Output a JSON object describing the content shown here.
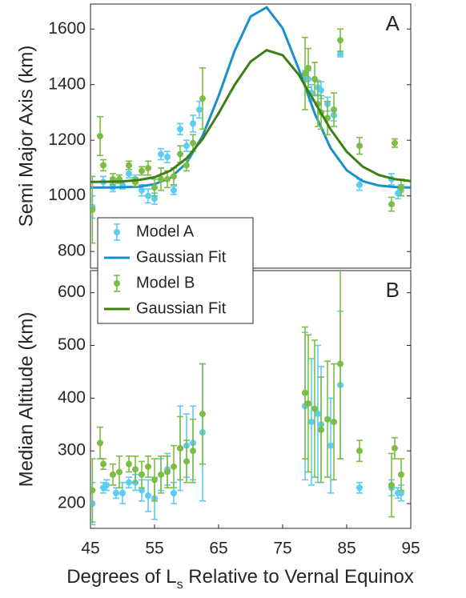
{
  "chart_data": [
    {
      "type": "scatter",
      "panel_label": "A",
      "y_label": "Semi Major Axis (km)",
      "xlim": [
        45,
        95
      ],
      "ylim": [
        740,
        1690
      ],
      "yticks": [
        800,
        1000,
        1200,
        1400,
        1600
      ],
      "legend": "lower left",
      "series": [
        {
          "name": "Model A",
          "kind": "errorbar",
          "color": "#5bcdf5",
          "x": [
            45.3,
            47,
            48.5,
            50,
            51,
            52,
            53,
            54,
            55,
            56,
            57,
            58,
            59,
            60,
            61,
            62,
            78.5,
            79,
            79.5,
            80.5,
            81,
            82,
            83,
            84,
            87,
            92,
            93,
            93.5
          ],
          "values": [
            960,
            1050,
            1030,
            1040,
            1080,
            1060,
            1020,
            1000,
            990,
            1150,
            1140,
            1020,
            1240,
            1180,
            1260,
            1310,
            1430,
            1420,
            1370,
            1390,
            1380,
            1330,
            1290,
            1510,
            1040,
            1060,
            1010,
            1020
          ],
          "errors": [
            40,
            20,
            15,
            15,
            15,
            15,
            20,
            25,
            20,
            20,
            20,
            15,
            20,
            20,
            30,
            30,
            20,
            30,
            30,
            25,
            30,
            25,
            20,
            10,
            20,
            20,
            20,
            20
          ]
        },
        {
          "name": "Gaussian Fit",
          "kind": "line",
          "color": "#1a8fc9",
          "x": [
            45,
            47.5,
            50,
            52.5,
            55,
            57.5,
            60,
            62.5,
            65,
            67.5,
            70,
            72.5,
            75,
            77.5,
            80,
            82.5,
            85,
            87.5,
            90,
            92.5,
            95
          ],
          "values": [
            1030,
            1030,
            1031,
            1033,
            1042,
            1065,
            1118,
            1216,
            1359,
            1521,
            1645,
            1678,
            1603,
            1457,
            1297,
            1171,
            1092,
            1053,
            1037,
            1032,
            1030
          ]
        },
        {
          "name": "Model B",
          "kind": "errorbar",
          "color": "#7dbd45",
          "x": [
            45.3,
            46.5,
            47,
            48.5,
            49.5,
            51,
            52,
            53,
            54,
            55,
            56,
            57,
            58,
            59,
            60,
            61,
            62.5,
            78.5,
            79,
            80,
            80.5,
            81,
            82,
            83,
            84,
            87,
            92,
            92.5,
            93.5
          ],
          "values": [
            950,
            1215,
            1110,
            1060,
            1060,
            1110,
            1050,
            1090,
            1100,
            1030,
            1060,
            1060,
            1070,
            1150,
            1110,
            1190,
            1350,
            1440,
            1460,
            1420,
            1330,
            1300,
            1280,
            1310,
            1560,
            1180,
            970,
            1190,
            1030
          ],
          "errors": [
            120,
            70,
            20,
            20,
            15,
            15,
            15,
            15,
            25,
            30,
            40,
            30,
            30,
            30,
            20,
            30,
            110,
            130,
            70,
            60,
            80,
            60,
            60,
            60,
            40,
            30,
            25,
            15,
            30
          ]
        },
        {
          "name": "Gaussian Fit",
          "kind": "line",
          "color": "#3d7f12",
          "x": [
            45,
            47.5,
            50,
            52.5,
            55,
            57.5,
            60,
            62.5,
            65,
            67.5,
            70,
            72.5,
            75,
            77.5,
            80,
            82.5,
            85,
            87.5,
            90,
            92.5,
            95
          ],
          "values": [
            1050,
            1051,
            1052,
            1057,
            1067,
            1091,
            1135,
            1204,
            1297,
            1399,
            1483,
            1524,
            1506,
            1436,
            1338,
            1239,
            1159,
            1105,
            1075,
            1060,
            1053
          ]
        }
      ]
    },
    {
      "type": "scatter",
      "panel_label": "B",
      "y_label": "Median Altitude (km)",
      "x_label": [
        "Degrees of L",
        "s",
        " Relative to Vernal Equinox"
      ],
      "xlim": [
        45,
        95
      ],
      "xticks": [
        45,
        55,
        65,
        75,
        85,
        95
      ],
      "ylim": [
        153,
        642
      ],
      "yticks": [
        200,
        300,
        400,
        500,
        600
      ],
      "series": [
        {
          "kind": "errorbar",
          "color": "#5bcdf5",
          "x": [
            45.3,
            47,
            47.5,
            49,
            50,
            51,
            52,
            53,
            54,
            55,
            56,
            57,
            58,
            59,
            60,
            61,
            62.5,
            78.5,
            79.5,
            80.5,
            81,
            82.5,
            84,
            87,
            92,
            93,
            93.5
          ],
          "values": [
            200,
            230,
            235,
            220,
            220,
            240,
            240,
            225,
            215,
            210,
            255,
            265,
            220,
            305,
            310,
            315,
            335,
            385,
            355,
            370,
            350,
            310,
            425,
            230,
            230,
            220,
            220
          ],
          "errors": [
            40,
            10,
            10,
            10,
            20,
            10,
            15,
            20,
            30,
            40,
            30,
            30,
            20,
            80,
            60,
            70,
            130,
            140,
            120,
            130,
            110,
            90,
            140,
            10,
            15,
            10,
            15
          ]
        },
        {
          "kind": "errorbar",
          "color": "#7dbd45",
          "x": [
            45.3,
            46.5,
            47,
            48.5,
            49.5,
            51,
            52,
            53,
            54,
            55,
            56,
            57,
            58,
            59,
            60,
            61,
            62.5,
            78.5,
            79,
            80,
            81,
            82,
            83,
            84,
            87,
            92,
            92.5,
            93.5
          ],
          "values": [
            225,
            315,
            275,
            255,
            260,
            275,
            265,
            255,
            270,
            245,
            255,
            260,
            270,
            305,
            280,
            300,
            370,
            410,
            390,
            380,
            340,
            360,
            355,
            465,
            300,
            235,
            305,
            255
          ],
          "errors": [
            60,
            30,
            10,
            20,
            30,
            15,
            25,
            25,
            20,
            40,
            35,
            30,
            40,
            60,
            40,
            60,
            95,
            125,
            130,
            130,
            100,
            110,
            110,
            180,
            20,
            60,
            20,
            30
          ]
        }
      ]
    }
  ]
}
